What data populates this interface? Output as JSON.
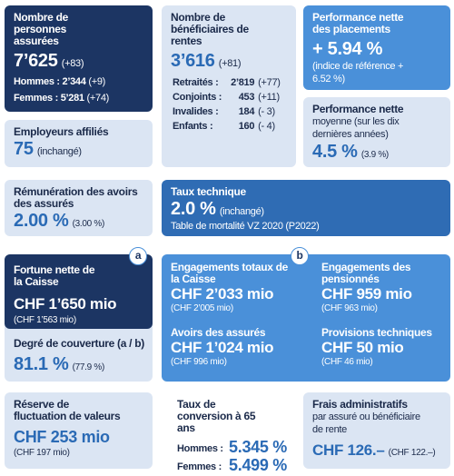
{
  "insured": {
    "title": "Nombre de personnes assurées",
    "value": "7’625",
    "change": "(+83)",
    "men": "Hommes : 2’344",
    "men_change": "(+9)",
    "women": "Femmes : 5’281",
    "women_change": "(+74)"
  },
  "employers": {
    "title": "Employeurs affiliés",
    "value": "75",
    "note": "(inchangé)"
  },
  "beneficiaries": {
    "title": "Nombre de bénéficiaires de rentes",
    "value": "3’616",
    "change": "(+81)",
    "rows": [
      [
        "Retraités :",
        "2’819",
        "(+77)"
      ],
      [
        "Conjoints :",
        "453",
        "(+11)"
      ],
      [
        "Invalides :",
        "184",
        "(- 3)"
      ],
      [
        "Enfants :",
        "160",
        "(- 4)"
      ]
    ]
  },
  "performance": {
    "title": "Performance nette des placements",
    "value": "+ 5.94 %",
    "note": "(indice de référence + 6.52 %)"
  },
  "avg_performance": {
    "title": "Performance nette",
    "subtitle": "moyenne (sur les dix dernières années)",
    "value": "4.5 %",
    "prev": "(3.9 %)"
  },
  "remuneration": {
    "title": "Rémunération des avoirs des assurés",
    "value": "2.00 %",
    "prev": "(3.00 %)"
  },
  "technical_rate": {
    "title": "Taux technique",
    "value": "2.0 %",
    "note": "(inchangé)",
    "table": "Table de mortalité VZ 2020 (P2022)"
  },
  "fortune": {
    "badge": "a",
    "title": "Fortune nette de la Caisse",
    "value": "CHF 1’650 mio",
    "prev": "(CHF 1’563 mio)"
  },
  "coverage": {
    "title": "Degré de couverture (a / b)",
    "value": "81.1 %",
    "prev": "(77.9 %)"
  },
  "commitments": {
    "badge": "b",
    "items": [
      {
        "title": "Engagements totaux de la Caisse",
        "value": "CHF 2’033 mio",
        "prev": "(CHF 2’005 mio)"
      },
      {
        "title": "Engagements des pensionnés",
        "value": "CHF 959 mio",
        "prev": "(CHF 963 mio)"
      },
      {
        "title": "Avoirs des assurés",
        "value": "CHF 1’024 mio",
        "prev": "(CHF 996 mio)"
      },
      {
        "title": "Provisions techniques",
        "value": "CHF 50 mio",
        "prev": "(CHF 46 mio)"
      }
    ]
  },
  "reserve": {
    "title": "Réserve de fluctuation de valeurs",
    "value": "CHF 253 mio",
    "prev": "(CHF 197 mio)"
  },
  "conversion": {
    "title": "Taux de conversion à 65 ans",
    "men_label": "Hommes :",
    "men_value": "5.345 %",
    "women_label": "Femmes :",
    "women_value": "5.499 %"
  },
  "admin_costs": {
    "title": "Frais administratifs",
    "subtitle": "par assuré ou bénéficiaire de rente",
    "value": "CHF 126.–",
    "prev": "(CHF 122.–)"
  }
}
